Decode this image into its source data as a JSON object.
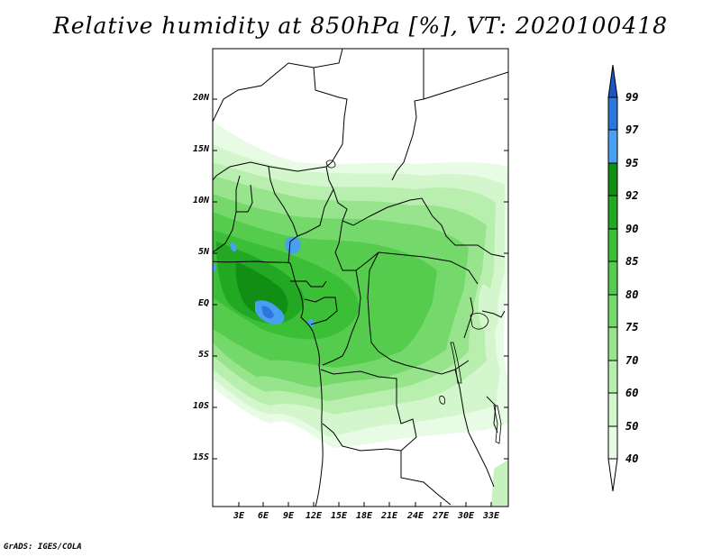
{
  "title": "Relative humidity at 850hPa [%], VT: 2020100418",
  "credit": "GrADS: IGES/COLA",
  "map": {
    "lat_labels": [
      "20N",
      "15N",
      "10N",
      "5N",
      "EQ",
      "5S",
      "10S",
      "15S"
    ],
    "lon_labels": [
      "3E",
      "6E",
      "9E",
      "12E",
      "15E",
      "18E",
      "21E",
      "24E",
      "27E",
      "30E",
      "33E"
    ]
  },
  "colorbar": {
    "levels": [
      "40",
      "50",
      "60",
      "70",
      "75",
      "80",
      "85",
      "90",
      "92",
      "95",
      "97",
      "99"
    ],
    "colors": [
      "#e8fbe5",
      "#d4f6cd",
      "#b8efaf",
      "#97e48c",
      "#74d86a",
      "#55cc4e",
      "#3abf37",
      "#22a822",
      "#118f15",
      "#4aa0f0",
      "#2c76dc",
      "#1a55c4"
    ]
  }
}
